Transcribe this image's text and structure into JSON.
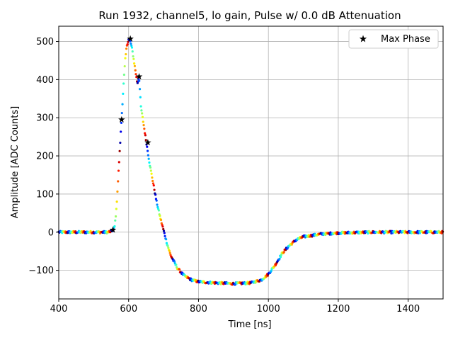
{
  "chart_data": {
    "type": "scatter",
    "title": "Run 1932, channel5, lo gain, Pulse w/ 0.0 dB Attenuation",
    "xlabel": "Time [ns]",
    "ylabel": "Amplitude [ADC Counts]",
    "xlim": [
      400,
      1500
    ],
    "ylim": [
      -175,
      540
    ],
    "xticks": [
      400,
      600,
      800,
      1000,
      1200,
      1400
    ],
    "xtick_labels": [
      "400",
      "600",
      "800",
      "1000",
      "1200",
      "1400"
    ],
    "yticks": [
      -100,
      0,
      100,
      200,
      300,
      400,
      500
    ],
    "ytick_labels": [
      "−100",
      "0",
      "100",
      "200",
      "300",
      "400",
      "500"
    ],
    "grid": true,
    "legend": {
      "location": "top-right",
      "entries": [
        "Max Phase"
      ]
    },
    "colormap": "jet",
    "pulse_profile": {
      "t": [
        400,
        540,
        550,
        556,
        560,
        565,
        570,
        575,
        580,
        585,
        590,
        595,
        600,
        605,
        610,
        615,
        620,
        625,
        630,
        635,
        640,
        645,
        650,
        655,
        660,
        670,
        680,
        690,
        700,
        710,
        720,
        740,
        760,
        780,
        800,
        850,
        900,
        950,
        980,
        1000,
        1020,
        1040,
        1060,
        1080,
        1100,
        1150,
        1200,
        1300,
        1400,
        1500
      ],
      "amplitude": [
        0,
        0,
        2,
        6,
        15,
        60,
        140,
        220,
        300,
        380,
        450,
        490,
        505,
        500,
        480,
        450,
        420,
        390,
        405,
        330,
        300,
        270,
        240,
        210,
        180,
        130,
        80,
        40,
        5,
        -30,
        -60,
        -95,
        -115,
        -125,
        -130,
        -133,
        -135,
        -133,
        -125,
        -110,
        -85,
        -55,
        -35,
        -20,
        -12,
        -5,
        -2,
        0,
        0,
        0
      ]
    },
    "max_phase": {
      "t": [
        555,
        580,
        605,
        630,
        655
      ],
      "amplitude": [
        6,
        295,
        507,
        408,
        235
      ]
    }
  }
}
